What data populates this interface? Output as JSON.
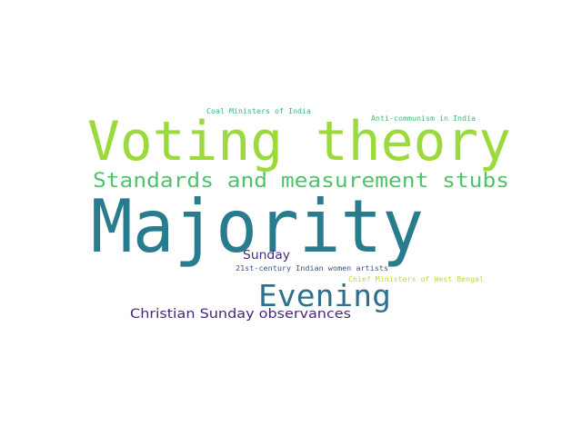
{
  "word_cloud": {
    "words": [
      {
        "id": "w1",
        "text": "Voting theory",
        "color": "#9bd93c"
      },
      {
        "id": "w2",
        "text": "Majority",
        "color": "#287c8e"
      },
      {
        "id": "w3",
        "text": "Standards and measurement stubs",
        "color": "#4ec36b"
      },
      {
        "id": "w4",
        "text": "Evening",
        "color": "#2c718e"
      },
      {
        "id": "w5",
        "text": "Christian Sunday observances",
        "color": "#482878"
      },
      {
        "id": "w6",
        "text": "Sunday",
        "color": "#472c7a"
      },
      {
        "id": "w7",
        "text": "Coal Ministers of India",
        "color": "#35b779"
      },
      {
        "id": "w8",
        "text": "Anti-communism in India",
        "color": "#3dbc74"
      },
      {
        "id": "w9",
        "text": "21st-century Indian women artists",
        "color": "#3b528b"
      },
      {
        "id": "w10",
        "text": "Chief Ministers of West Bengal",
        "color": "#bddf26"
      }
    ]
  }
}
